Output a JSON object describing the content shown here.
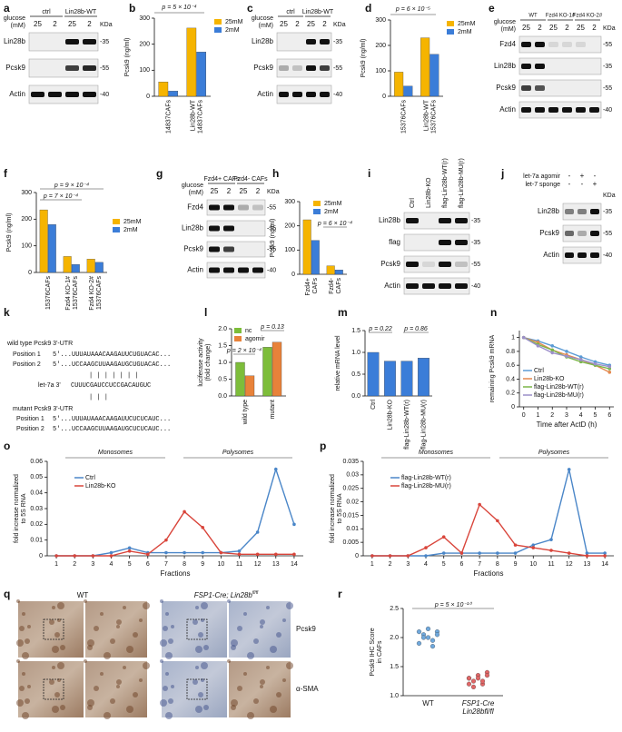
{
  "panel_labels": [
    "a",
    "b",
    "c",
    "d",
    "e",
    "f",
    "g",
    "h",
    "i",
    "j",
    "k",
    "l",
    "m",
    "n",
    "o",
    "p",
    "q",
    "r"
  ],
  "blots": [
    {
      "glucose_label": [
        "glucose",
        "(mM)"
      ],
      "groups": [
        "ctrl",
        "Lin28b-WT"
      ],
      "lanes": [
        "25",
        "2",
        "25",
        "2"
      ],
      "kda_label": "KDa",
      "rows": [
        {
          "name": "Lin28b",
          "kda": "-35"
        },
        {
          "name": "Pcsk9",
          "kda": "-55"
        },
        {
          "name": "Actin",
          "kda": "-40"
        }
      ]
    },
    {
      "glucose_label": [
        "glucose",
        "(mM)"
      ],
      "groups": [
        "ctrl",
        "Lin28b-WT"
      ],
      "lanes": [
        "25",
        "2",
        "25",
        "2"
      ],
      "kda_label": "KDa",
      "rows": [
        {
          "name": "Lin28b",
          "kda": "-35"
        },
        {
          "name": "Pcsk9",
          "kda": "-55"
        },
        {
          "name": "Actin",
          "kda": "-40"
        }
      ]
    },
    {
      "glucose_label": [
        "glucose",
        "(mM)"
      ],
      "groups": [
        "WT",
        "Fzd4 KO-1#",
        "Fzd4 KO-2#"
      ],
      "lanes": [
        "25",
        "2",
        "25",
        "2",
        "25",
        "2"
      ],
      "kda_label": "KDa",
      "rows": [
        {
          "name": "Fzd4",
          "kda": "-55"
        },
        {
          "name": "Lin28b",
          "kda": "-35"
        },
        {
          "name": "Pcsk9",
          "kda": "-55"
        },
        {
          "name": "Actin",
          "kda": "-40"
        }
      ]
    },
    {
      "glucose_label": [
        "glucose",
        "(mM)"
      ],
      "groups": [
        "Fzd4+ CAFs",
        "Fzd4- CAFs"
      ],
      "lanes": [
        "25",
        "2",
        "25",
        "2"
      ],
      "kda_label": "KDa",
      "rows": [
        {
          "name": "Fzd4",
          "kda": "-55"
        },
        {
          "name": "Lin28b",
          "kda": "-35"
        },
        {
          "name": "Pcsk9",
          "kda": "-55"
        },
        {
          "name": "Actin",
          "kda": "-40"
        }
      ]
    },
    {
      "lane_labels": [
        "Ctrl",
        "Lin28b-KO",
        "flag-Lin28b-WT(r)",
        "flag-Lin28b-MU(r)"
      ],
      "rows": [
        {
          "name": "Lin28b",
          "kda": "-35"
        },
        {
          "name": "flag",
          "kda": "-35"
        },
        {
          "name": "Pcsk9",
          "kda": "-55"
        },
        {
          "name": "Actin",
          "kda": "-40"
        }
      ]
    },
    {
      "treatments": [
        {
          "name": "let-7a agomir",
          "signs": [
            "-",
            "+",
            "-"
          ]
        },
        {
          "name": "let-7 sponge",
          "signs": [
            "-",
            "-",
            "+"
          ]
        }
      ],
      "kda_label": "KDa",
      "rows": [
        {
          "name": "Lin28b",
          "kda": "-35"
        },
        {
          "name": "Pcsk9",
          "kda": "-55"
        },
        {
          "name": "Actin",
          "kda": "-40"
        }
      ]
    }
  ],
  "sequences": [
    "wild type Pcsk9 3'-UTR",
    "Position 1",
    "5'...UUUAUAAACAAGAUUCUGUACAC...",
    "Position 2",
    "5'...UCCAAGCUUAAGAUGCUGUACAC...",
    "| | | | | | |",
    "let-7a  3'",
    "CUUUCGAUCCUCCGACAUGUC",
    "mutant Pcsk9 3'-UTR",
    "Position 1",
    "5'...UUUAUAAACAAGAUUCUCUCAUC...",
    "Position 2",
    "5'...UCCAAGCUUAAGAUGCUCUCAUC...",
    "|  |            |"
  ],
  "ihc": {
    "groups": [
      "WT",
      "FSP1-Cre; Lin28b"
    ],
    "superscript": "fl/fl",
    "rows": [
      "Pcsk9",
      "α-SMA"
    ]
  },
  "chart_data": [
    {
      "type": "bar",
      "ylabel": "Pcsk9 (ng/ml)",
      "categories": [
        "14837CAFs",
        [
          "Lin28b-WT",
          "14837CAFs"
        ]
      ],
      "series": [
        {
          "name": "25mM",
          "color": "#f5b400",
          "values": [
            55,
            262
          ]
        },
        {
          "name": "2mM",
          "color": "#3b7dd8",
          "values": [
            20,
            170
          ]
        }
      ],
      "ylim": [
        0,
        300
      ],
      "yticks": [
        0,
        100,
        200,
        300
      ],
      "annotations": [
        "p = 5 × 10⁻⁴"
      ]
    },
    {
      "type": "bar",
      "ylabel": "Pcsk9 (ng/ml)",
      "categories": [
        "15376CAFs",
        [
          "Lin28b-WT",
          "15376CAFs"
        ]
      ],
      "series": [
        {
          "name": "25mM",
          "color": "#f5b400",
          "values": [
            95,
            230
          ]
        },
        {
          "name": "2mM",
          "color": "#3b7dd8",
          "values": [
            40,
            165
          ]
        }
      ],
      "ylim": [
        0,
        300
      ],
      "yticks": [
        0,
        100,
        200,
        300
      ],
      "annotations": [
        "p = 6 × 10⁻⁵"
      ]
    },
    {
      "type": "bar",
      "ylabel": "Pcsk9 (ng/ml)",
      "categories": [
        "15376CAFs",
        [
          "Fzd4 KO-1#",
          "15376CAFs"
        ],
        [
          "Fzd4 KO-2#",
          "15376CAFs"
        ]
      ],
      "series": [
        {
          "name": "25mM",
          "color": "#f5b400",
          "values": [
            235,
            60,
            50
          ]
        },
        {
          "name": "2mM",
          "color": "#3b7dd8",
          "values": [
            180,
            30,
            38
          ]
        }
      ],
      "ylim": [
        0,
        300
      ],
      "yticks": [
        0,
        100,
        200,
        300
      ],
      "annotations": [
        "p = 9 × 10⁻⁴",
        "p = 7 × 10⁻⁴"
      ]
    },
    {
      "type": "bar",
      "ylabel": "Pcsk9 (ng/ml)",
      "categories": [
        [
          "Fzd4+",
          "CAFs"
        ],
        [
          "Fzd4-",
          "CAFs"
        ]
      ],
      "series": [
        {
          "name": "25mM",
          "color": "#f5b400",
          "values": [
            225,
            35
          ]
        },
        {
          "name": "2mM",
          "color": "#3b7dd8",
          "values": [
            140,
            18
          ]
        }
      ],
      "ylim": [
        0,
        300
      ],
      "yticks": [
        0,
        100,
        200,
        300
      ],
      "annotations": [
        "p = 6 × 10⁻⁴"
      ]
    },
    {
      "type": "bar",
      "ylabel": [
        "luciferase activity",
        "(fold change)"
      ],
      "categories": [
        "wild type",
        "mutant"
      ],
      "series": [
        {
          "name": "nc",
          "color": "#7dbd3a",
          "values": [
            1.0,
            1.45
          ]
        },
        {
          "name": "agomir",
          "color": "#e8823a",
          "values": [
            0.6,
            1.6
          ]
        }
      ],
      "ylim": [
        0,
        2
      ],
      "yticks": [
        {
          "value": 0,
          "label": "0.0"
        },
        {
          "value": 0.5,
          "label": "0.5"
        },
        {
          "value": 1,
          "label": "1.0"
        },
        {
          "value": 1.5,
          "label": "1.5"
        },
        {
          "value": 2,
          "label": "2.0"
        }
      ],
      "annotations": [
        "p = 2 × 10⁻⁴",
        "p = 0.13"
      ]
    },
    {
      "type": "bar",
      "ylabel": "relative mRNA level",
      "categories": [
        "Ctrl",
        "Lin28b-KO",
        "flag-Lin28b-WT(r)",
        "flag-Lin28b-MU(r)"
      ],
      "series": [
        {
          "color": "#3b7dd8",
          "values": [
            1.0,
            0.8,
            0.8,
            0.87
          ]
        }
      ],
      "ylim": [
        0,
        1.5
      ],
      "yticks": [
        {
          "value": 0,
          "label": "0.0"
        },
        {
          "value": 0.5,
          "label": "0.5"
        },
        {
          "value": 1,
          "label": "1.0"
        },
        {
          "value": 1.5,
          "label": "1.5"
        }
      ],
      "annotations": [
        "p = 0.22",
        "p = 0.86"
      ]
    },
    {
      "type": "line",
      "ylabel": "remaining Pcsk9 mRNA",
      "xlabel": "Time after ActD (h)",
      "x": [
        0,
        1,
        2,
        3,
        4,
        5,
        6
      ],
      "series": [
        {
          "name": "Ctrl",
          "color": "#5b9bd5",
          "values": [
            1,
            0.95,
            0.88,
            0.8,
            0.72,
            0.65,
            0.6
          ]
        },
        {
          "name": "Lin28b-KO",
          "color": "#e4894f",
          "values": [
            1,
            0.93,
            0.82,
            0.75,
            0.68,
            0.6,
            0.5
          ]
        },
        {
          "name": "flag-Lin28b-WT(r)",
          "color": "#7ab648",
          "values": [
            1,
            0.9,
            0.82,
            0.72,
            0.65,
            0.6,
            0.55
          ]
        },
        {
          "name": "flag-Lin28b-MU(r)",
          "color": "#9b8fc9",
          "values": [
            1,
            0.88,
            0.78,
            0.73,
            0.68,
            0.62,
            0.58
          ]
        }
      ],
      "xlim": [
        -0.3,
        6.3
      ],
      "xticks": [
        0,
        1,
        2,
        3,
        4,
        5,
        6
      ],
      "ylim": [
        0,
        1.1
      ],
      "yticks": [
        0,
        0.2,
        0.4,
        0.6,
        0.8,
        1
      ]
    },
    {
      "type": "line",
      "ylabel": [
        "fold increase normalized",
        "to 5S RNA"
      ],
      "xlabel": "Fractions",
      "x": [
        1,
        2,
        3,
        4,
        5,
        6,
        7,
        8,
        9,
        10,
        11,
        12,
        13,
        14
      ],
      "series": [
        {
          "name": "Ctrl",
          "color": "#4a86c8",
          "values": [
            0,
            0,
            0,
            0.002,
            0.005,
            0.002,
            0.002,
            0.002,
            0.002,
            0.002,
            0.003,
            0.015,
            0.055,
            0.02
          ]
        },
        {
          "name": "Lin28b-KO",
          "color": "#d9453b",
          "values": [
            0,
            0,
            0,
            0,
            0.003,
            0.001,
            0.01,
            0.028,
            0.018,
            0.002,
            0.001,
            0.001,
            0.001,
            0.001
          ]
        }
      ],
      "xlim": [
        0.5,
        14.5
      ],
      "xticks": [
        1,
        2,
        3,
        4,
        5,
        6,
        7,
        8,
        9,
        10,
        11,
        12,
        13,
        14
      ],
      "ylim": [
        0,
        0.06
      ],
      "yticks": [
        0,
        0.01,
        0.02,
        0.03,
        0.04,
        0.05,
        0.06
      ],
      "annotations": [
        "Monosomes",
        "Polysomes"
      ]
    },
    {
      "type": "line",
      "ylabel": [
        "fold increase normalized",
        "to 5S RNA"
      ],
      "xlabel": "Fractions",
      "x": [
        1,
        2,
        3,
        4,
        5,
        6,
        7,
        8,
        9,
        10,
        11,
        12,
        13,
        14
      ],
      "series": [
        {
          "name": "flag-Lin28b-WT(r)",
          "color": "#4a86c8",
          "values": [
            0,
            0,
            0,
            0,
            0.001,
            0.001,
            0.001,
            0.001,
            0.001,
            0.004,
            0.006,
            0.032,
            0.001,
            0.001
          ]
        },
        {
          "name": "flag-Lin28b-MU(r)",
          "color": "#d9453b",
          "values": [
            0,
            0,
            0,
            0.003,
            0.007,
            0.001,
            0.019,
            0.013,
            0.004,
            0.003,
            0.002,
            0.001,
            0,
            0
          ]
        }
      ],
      "xlim": [
        0.5,
        14.5
      ],
      "xticks": [
        1,
        2,
        3,
        4,
        5,
        6,
        7,
        8,
        9,
        10,
        11,
        12,
        13,
        14
      ],
      "ylim": [
        0,
        0.035
      ],
      "yticks": [
        0,
        0.005,
        0.01,
        0.015,
        0.02,
        0.025,
        0.03,
        0.035
      ],
      "annotations": [
        "Monosomes",
        "Polysomes"
      ]
    },
    {
      "type": "strip",
      "ylabel": [
        "Pcsk9 IHC Score",
        "in CAFs"
      ],
      "categories": [
        "WT",
        [
          "FSP1-Cre",
          "Lin28bfl/fl"
        ]
      ],
      "series": [
        {
          "color": "#6fa8dc",
          "values": [
            2.1,
            2.05,
            2.0,
            1.95,
            2.1,
            1.9,
            2.0,
            2.15,
            1.85,
            2.05
          ]
        },
        {
          "color": "#e06666",
          "values": [
            1.3,
            1.25,
            1.35,
            1.2,
            1.4,
            1.3,
            1.15,
            1.3,
            1.25,
            1.35,
            1.2
          ]
        }
      ],
      "ylim": [
        1,
        2.5
      ],
      "yticks": [
        {
          "value": 1,
          "label": "1.0"
        },
        {
          "value": 1.5,
          "label": "1.5"
        },
        {
          "value": 2,
          "label": "2.0"
        },
        {
          "value": 2.5,
          "label": "2.5"
        }
      ],
      "annotations": [
        "p = 5 × 10⁻¹⁰"
      ]
    }
  ]
}
